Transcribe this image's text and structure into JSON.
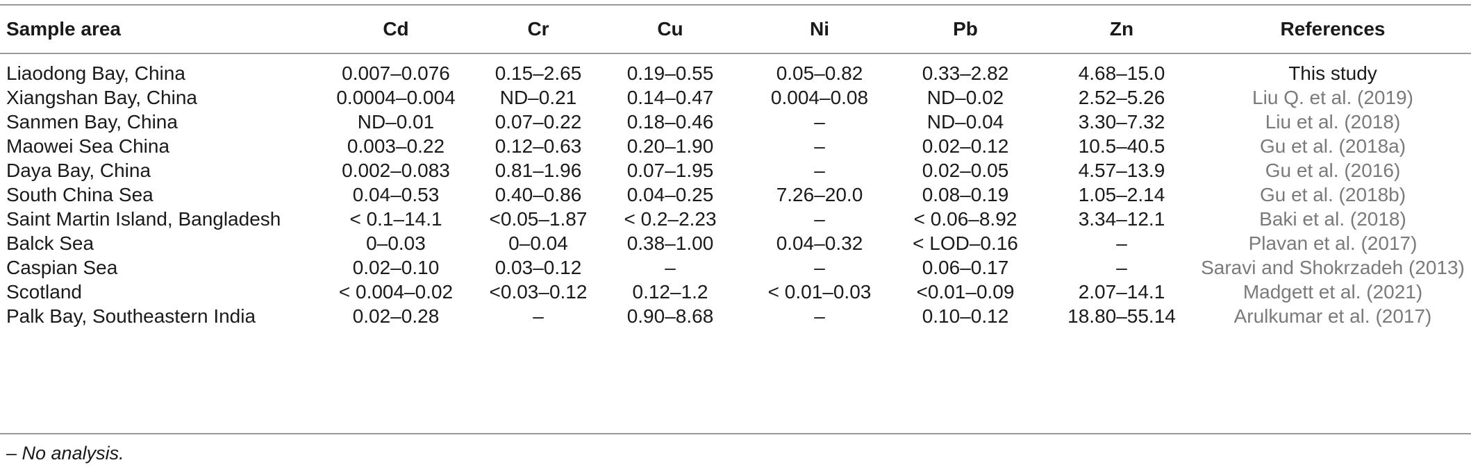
{
  "table": {
    "headers": [
      "Sample area",
      "Cd",
      "Cr",
      "Cu",
      "Ni",
      "Pb",
      "Zn",
      "References"
    ],
    "rows": [
      [
        "Liaodong Bay, China",
        "0.007–0.076",
        "0.15–2.65",
        "0.19–0.55",
        "0.05–0.82",
        "0.33–2.82",
        "4.68–15.0",
        "This study"
      ],
      [
        "Xiangshan Bay, China",
        "0.0004–0.004",
        "ND–0.21",
        "0.14–0.47",
        "0.004–0.08",
        "ND–0.02",
        "2.52–5.26",
        "Liu Q. et al. (2019)"
      ],
      [
        "Sanmen Bay, China",
        "ND–0.01",
        "0.07–0.22",
        "0.18–0.46",
        "–",
        "ND–0.04",
        "3.30–7.32",
        "Liu et al. (2018)"
      ],
      [
        "Maowei Sea China",
        "0.003–0.22",
        "0.12–0.63",
        "0.20–1.90",
        "–",
        "0.02–0.12",
        "10.5–40.5",
        "Gu et al. (2018a)"
      ],
      [
        "Daya Bay, China",
        "0.002–0.083",
        "0.81–1.96",
        "0.07–1.95",
        "–",
        "0.02–0.05",
        "4.57–13.9",
        "Gu et al. (2016)"
      ],
      [
        "South China Sea",
        "0.04–0.53",
        "0.40–0.86",
        "0.04–0.25",
        "7.26–20.0",
        "0.08–0.19",
        "1.05–2.14",
        "Gu et al. (2018b)"
      ],
      [
        "Saint Martin Island, Bangladesh",
        "< 0.1–14.1",
        "<0.05–1.87",
        "< 0.2–2.23",
        "–",
        "< 0.06–8.92",
        "3.34–12.1",
        "Baki et al. (2018)"
      ],
      [
        "Balck Sea",
        "0–0.03",
        "0–0.04",
        "0.38–1.00",
        "0.04–0.32",
        "< LOD–0.16",
        "–",
        "Plavan et al. (2017)"
      ],
      [
        "Caspian Sea",
        "0.02–0.10",
        "0.03–0.12",
        "–",
        "–",
        "0.06–0.17",
        "–",
        "Saravi and Shokrzadeh (2013)"
      ],
      [
        "Scotland",
        "< 0.004–0.02",
        "<0.03–0.12",
        "0.12–1.2",
        "< 0.01–0.03",
        "<0.01–0.09",
        "2.07–14.1",
        "Madgett et al. (2021)"
      ],
      [
        "Palk Bay, Southeastern India",
        "0.02–0.28",
        "–",
        "0.90–8.68",
        "–",
        "0.10–0.12",
        "18.80–55.14",
        "Arulkumar et al. (2017)"
      ]
    ],
    "footnote": "– No analysis."
  }
}
